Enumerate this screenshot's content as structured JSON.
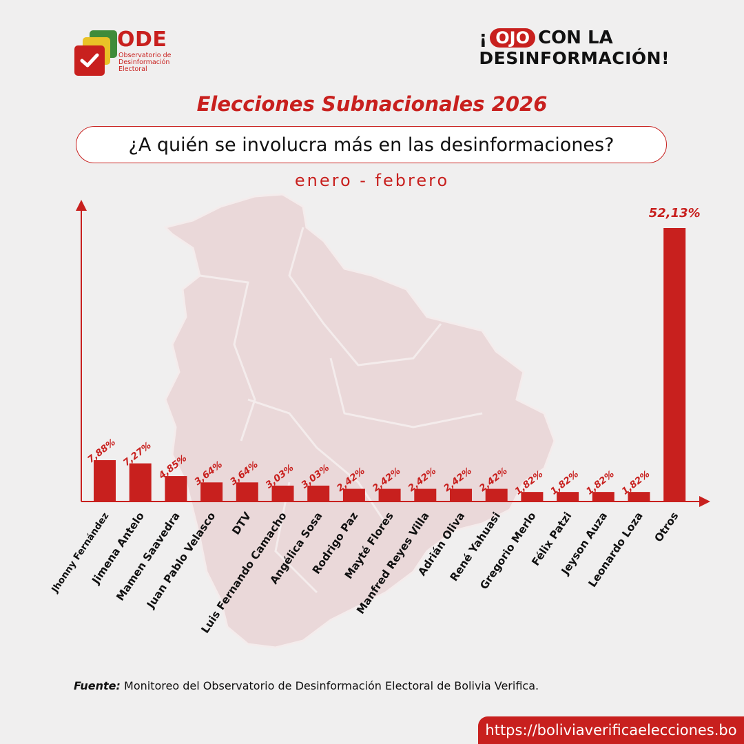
{
  "brand": {
    "logo_name": "ODE",
    "logo_subtitle": "Observatorio de Desinformación Electoral",
    "campaign_prefix": "¡",
    "campaign_highlight": "OJO",
    "campaign_line1_rest": "CON LA",
    "campaign_line2": "DESINFORMACIÓN!"
  },
  "header": {
    "title": "Elecciones Subnacionales 2026",
    "question": "¿A quién se involucra más en las desinformaciones?",
    "period": "enero - febrero"
  },
  "colors": {
    "accent": "#c8201e",
    "background": "#f0efef",
    "map": "#ead8d9"
  },
  "chart_data": {
    "type": "bar",
    "title": "¿A quién se involucra más en las desinformaciones?",
    "xlabel": "",
    "ylabel": "",
    "ylim": [
      0,
      55
    ],
    "categories": [
      "Jhonny Fernández",
      "Jimena Antelo",
      "Mamen Saavedra",
      "Juan Pablo Velasco",
      "DTV",
      "Luis Fernando Camacho",
      "Angélica Sosa",
      "Rodrigo Paz",
      "Mayté Flores",
      "Manfred Reyes Villa",
      "Adrián Oliva",
      "René Yahuasi",
      "Gregorio Merlo",
      "Félix Patzi",
      "Jeyson Auza",
      "Leonardo Loza",
      "Otros"
    ],
    "values": [
      7.88,
      7.27,
      4.85,
      3.64,
      3.64,
      3.03,
      3.03,
      2.42,
      2.42,
      2.42,
      2.42,
      2.42,
      1.82,
      1.82,
      1.82,
      1.82,
      52.13
    ],
    "value_labels": [
      "7,88%",
      "7,27%",
      "4,85%",
      "3,64%",
      "3,64%",
      "3,03%",
      "3,03%",
      "2,42%",
      "2,42%",
      "2,42%",
      "2,42%",
      "2,42%",
      "1,82%",
      "1,82%",
      "1,82%",
      "1,82%",
      "52,13%"
    ],
    "grid": false
  },
  "footer": {
    "source_label": "Fuente:",
    "source_text": " Monitoreo del Observatorio de Desinformación Electoral de Bolivia Verifica.",
    "url": "https://boliviaverificaelecciones.bo"
  }
}
